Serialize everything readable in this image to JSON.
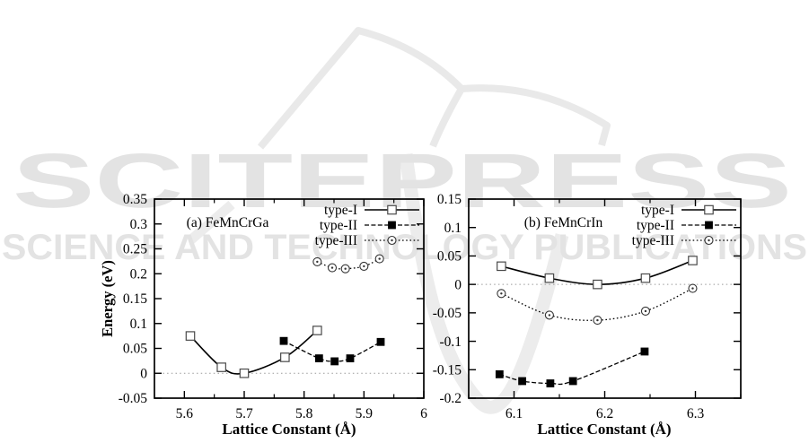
{
  "watermark": {
    "brand": "SCITEPRESS",
    "tagline": "SCIENCE AND TECHNOLOGY PUBLICATIONS",
    "color": "#e3e3e3",
    "logo_icon": "open-book-icon"
  },
  "figure": {
    "energy_axis_label": "Energy (eV)"
  },
  "chart_data": [
    {
      "id": "a",
      "type": "line",
      "title": "(a) FeMnCrGa",
      "xlabel": "Lattice Constant (Å)",
      "ylabel": "Energy (eV)",
      "xlim": [
        5.55,
        6.0
      ],
      "ylim": [
        -0.05,
        0.35
      ],
      "x_ticks": [
        5.6,
        5.7,
        5.8,
        5.9,
        6.0
      ],
      "x_tick_labels": [
        "5.6",
        "5.7",
        "5.8",
        "5.9",
        "6"
      ],
      "x_minor_ticks": [
        5.65,
        5.75,
        5.85,
        5.95
      ],
      "y_ticks": [
        0.35,
        0.3,
        0.25,
        0.2,
        0.15,
        0.1,
        0.05,
        0,
        -0.05
      ],
      "y_tick_labels": [
        "0.35",
        "0.3",
        "0.25",
        "0.2",
        "0.15",
        "0.1",
        "0.05",
        "0",
        "-0.05"
      ],
      "grid": false,
      "zero_gridline": true,
      "legend_position": "top-right",
      "series": [
        {
          "name": "type-I",
          "line": "solid",
          "marker": "open-square",
          "points": [
            [
              5.61,
              0.075
            ],
            [
              5.662,
              0.012
            ],
            [
              5.7,
              0.0
            ],
            [
              5.768,
              0.032
            ],
            [
              5.822,
              0.086
            ]
          ]
        },
        {
          "name": "type-II",
          "line": "dashed",
          "marker": "filled-square",
          "points": [
            [
              5.766,
              0.065
            ],
            [
              5.825,
              0.03
            ],
            [
              5.851,
              0.024
            ],
            [
              5.877,
              0.03
            ],
            [
              5.928,
              0.063
            ]
          ]
        },
        {
          "name": "type-III",
          "line": "dotted",
          "marker": "circle-dot",
          "points": [
            [
              5.822,
              0.224
            ],
            [
              5.847,
              0.212
            ],
            [
              5.869,
              0.21
            ],
            [
              5.9,
              0.215
            ],
            [
              5.926,
              0.23
            ]
          ]
        }
      ]
    },
    {
      "id": "b",
      "type": "line",
      "title": "(b) FeMnCrIn",
      "xlabel": "Lattice Constant (Å)",
      "ylabel": "",
      "xlim": [
        6.05,
        6.35
      ],
      "ylim": [
        -0.2,
        0.15
      ],
      "x_ticks": [
        6.1,
        6.2,
        6.3
      ],
      "x_tick_labels": [
        "6.1",
        "6.2",
        "6.3"
      ],
      "x_minor_ticks": [
        6.05,
        6.15,
        6.25,
        6.35
      ],
      "y_ticks": [
        0.15,
        0.1,
        0.05,
        0,
        -0.05,
        -0.1,
        -0.15,
        -0.2
      ],
      "y_tick_labels": [
        "0.15",
        "0.1",
        "0.05",
        "0",
        "-0.05",
        "-0.1",
        "-0.15",
        "-0.2"
      ],
      "grid": false,
      "zero_gridline": true,
      "legend_position": "top-right",
      "series": [
        {
          "name": "type-I",
          "line": "solid",
          "marker": "open-square",
          "points": [
            [
              6.086,
              0.032
            ],
            [
              6.139,
              0.011
            ],
            [
              6.192,
              0.0
            ],
            [
              6.245,
              0.011
            ],
            [
              6.297,
              0.042
            ]
          ]
        },
        {
          "name": "type-II",
          "line": "dashed",
          "marker": "filled-square",
          "points": [
            [
              6.084,
              -0.158
            ],
            [
              6.109,
              -0.17
            ],
            [
              6.14,
              -0.174
            ],
            [
              6.165,
              -0.17
            ],
            [
              6.244,
              -0.118
            ]
          ]
        },
        {
          "name": "type-III",
          "line": "dotted",
          "marker": "circle-dot",
          "points": [
            [
              6.086,
              -0.016
            ],
            [
              6.139,
              -0.054
            ],
            [
              6.192,
              -0.063
            ],
            [
              6.245,
              -0.047
            ],
            [
              6.297,
              -0.007
            ]
          ]
        }
      ]
    }
  ]
}
